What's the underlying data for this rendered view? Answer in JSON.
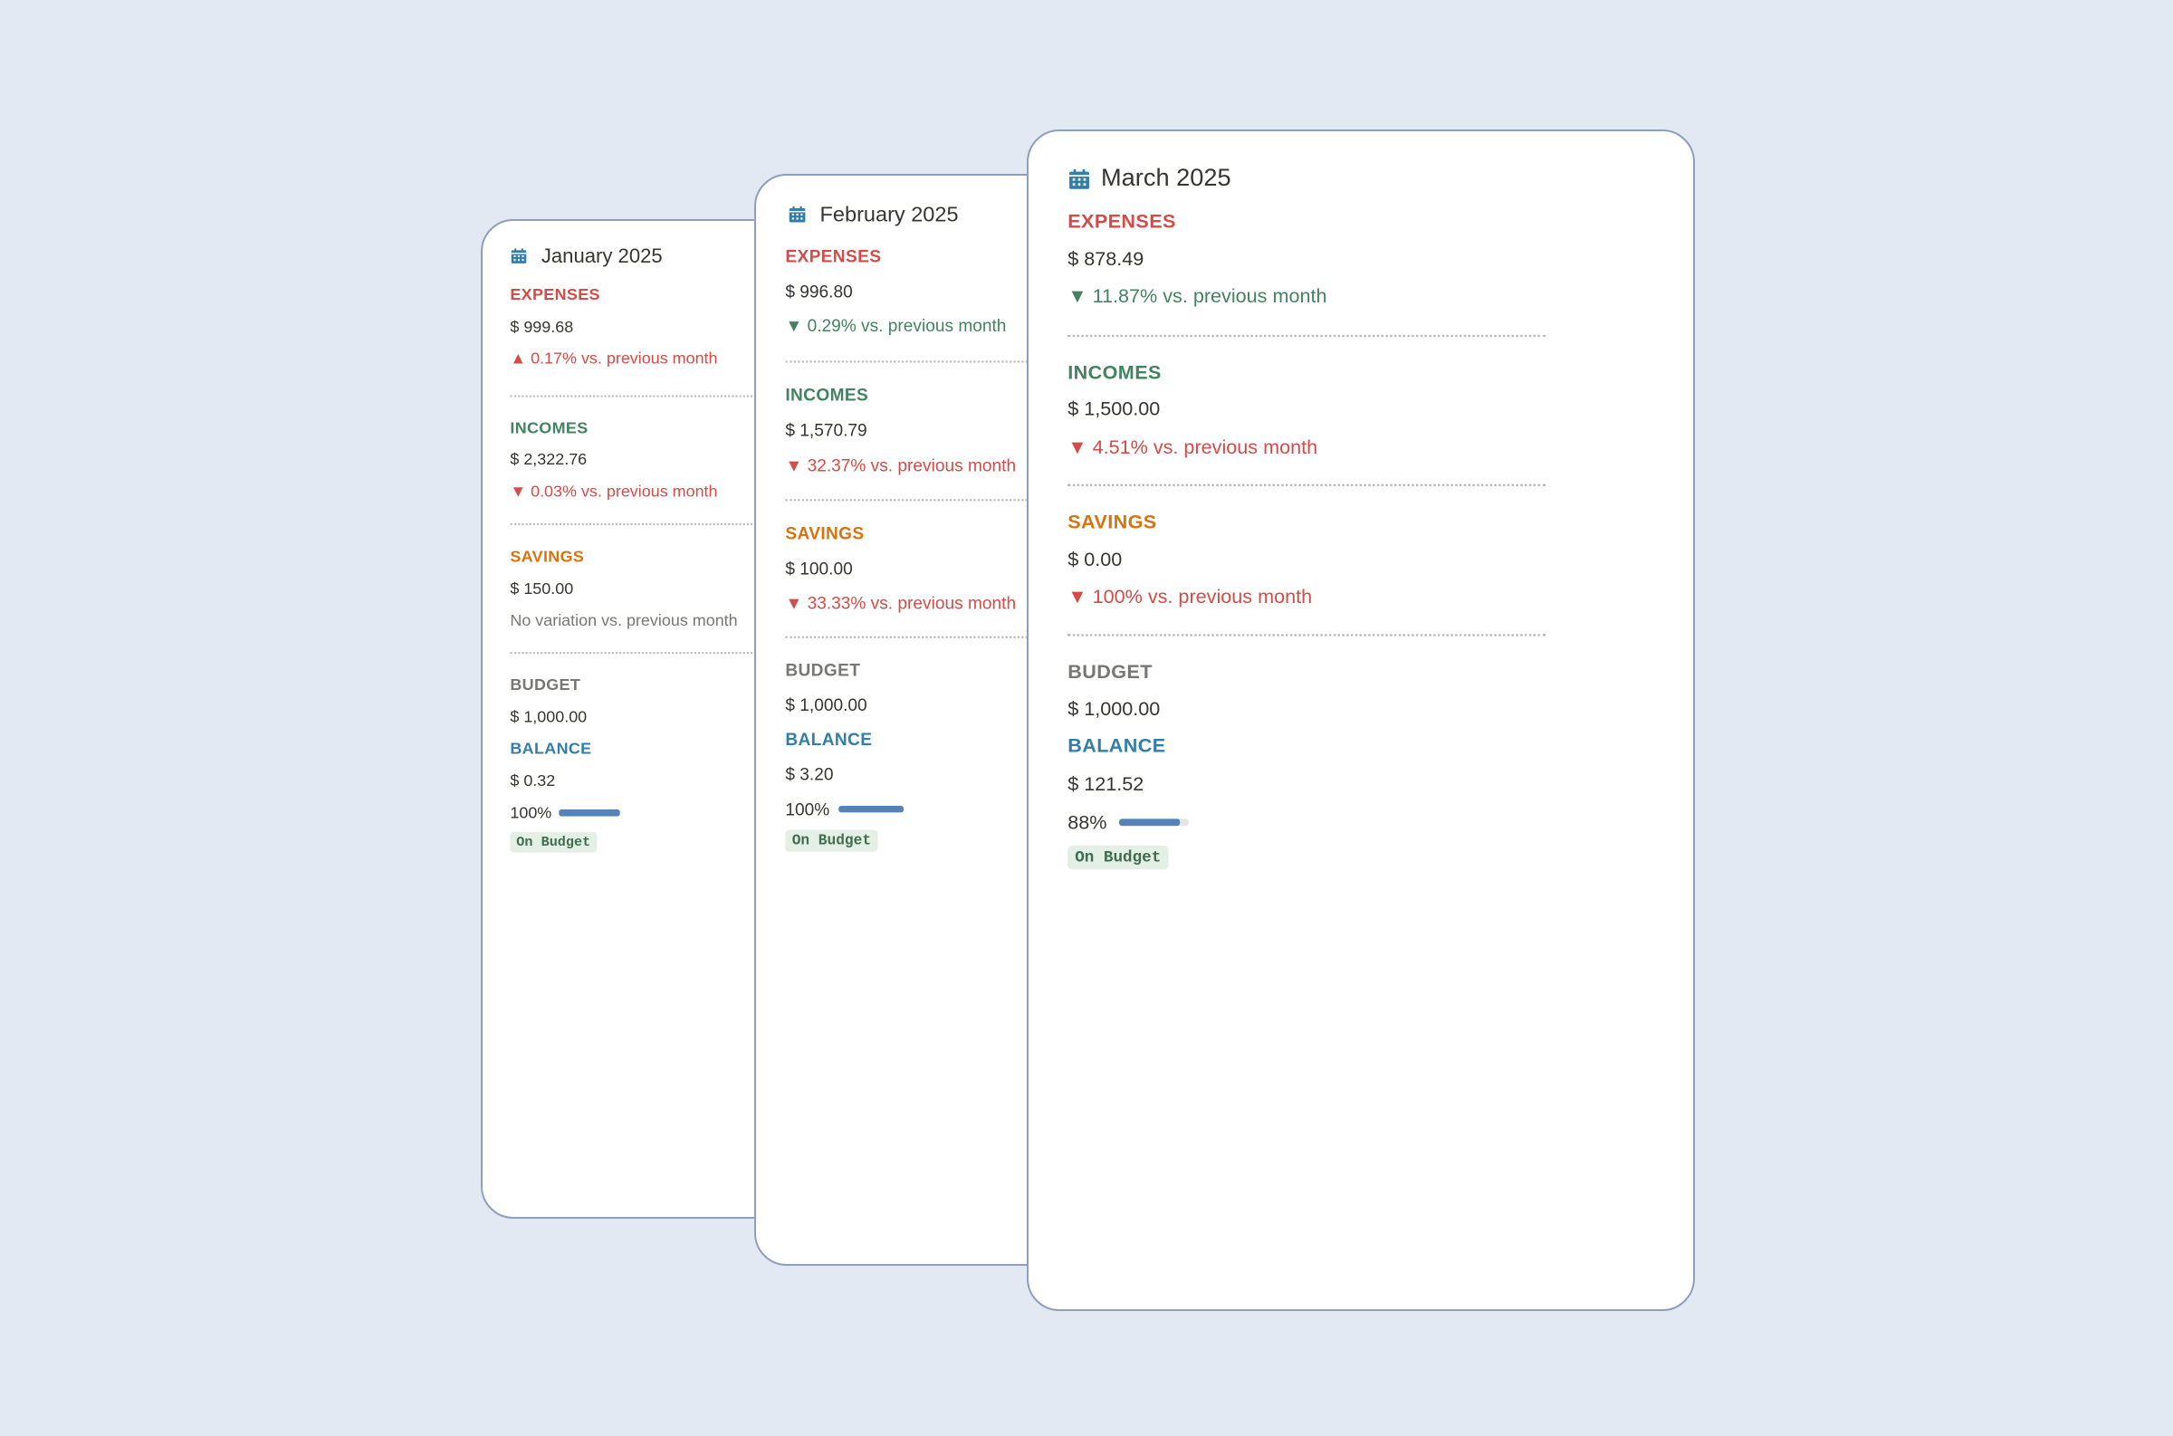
{
  "cards": {
    "january": {
      "title": "January 2025",
      "expenses": {
        "label": "EXPENSES",
        "amount": "$ 999.68",
        "change": "▲ 0.17% vs. previous month"
      },
      "incomes": {
        "label": "INCOMES",
        "amount": "$ 2,322.76",
        "change": "▼ 0.03% vs. previous month"
      },
      "savings": {
        "label": "SAVINGS",
        "amount": "$ 150.00",
        "change": "No variation vs. previous month"
      },
      "budget": {
        "label": "BUDGET",
        "amount": "$ 1,000.00"
      },
      "balance": {
        "label": "BALANCE",
        "amount": "$ 0.32"
      },
      "usage": {
        "percent_label": "100%",
        "fraction": 1.0
      },
      "status": "On Budget"
    },
    "february": {
      "title": "February 2025",
      "expenses": {
        "label": "EXPENSES",
        "amount": "$ 996.80",
        "change": "▼ 0.29% vs. previous month"
      },
      "incomes": {
        "label": "INCOMES",
        "amount": "$ 1,570.79",
        "change": "▼ 32.37% vs. previous month"
      },
      "savings": {
        "label": "SAVINGS",
        "amount": "$ 100.00",
        "change": "▼ 33.33% vs. previous month"
      },
      "budget": {
        "label": "BUDGET",
        "amount": "$ 1,000.00"
      },
      "balance": {
        "label": "BALANCE",
        "amount": "$ 3.20"
      },
      "usage": {
        "percent_label": "100%",
        "fraction": 1.0
      },
      "status": "On Budget"
    },
    "march": {
      "title": "March 2025",
      "expenses": {
        "label": "EXPENSES",
        "amount": "$ 878.49",
        "change": "▼ 11.87% vs. previous month"
      },
      "incomes": {
        "label": "INCOMES",
        "amount": "$ 1,500.00",
        "change": "▼ 4.51% vs. previous month"
      },
      "savings": {
        "label": "SAVINGS",
        "amount": "$ 0.00",
        "change": "▼ 100% vs. previous month"
      },
      "budget": {
        "label": "BUDGET",
        "amount": "$ 1,000.00"
      },
      "balance": {
        "label": "BALANCE",
        "amount": "$ 121.52"
      },
      "usage": {
        "percent_label": "88%",
        "fraction": 0.88
      },
      "status": "On Budget"
    }
  },
  "icons": {
    "calendar": "calendar-icon"
  },
  "colors": {
    "background": "#e3e9f2",
    "expenses": "#d44c47",
    "incomes": "#448361",
    "savings": "#d9730d",
    "budget": "#787774",
    "balance": "#337ea9",
    "progress": "#5383b8",
    "badge_bg": "#e4efe6",
    "badge_text": "#3f6d4e"
  }
}
